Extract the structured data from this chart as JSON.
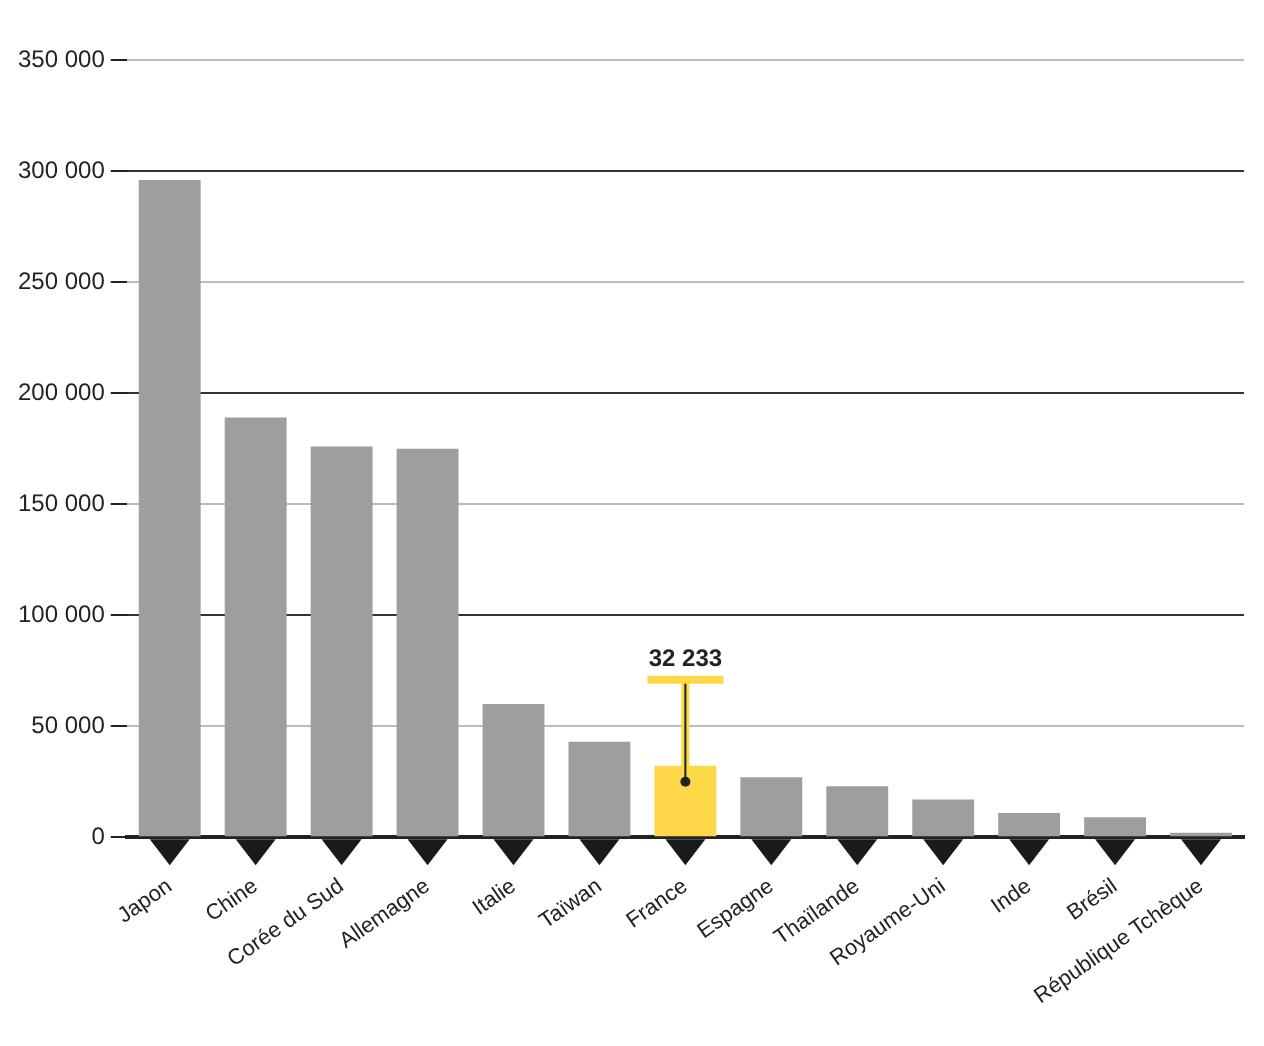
{
  "chart_data": {
    "type": "bar",
    "categories": [
      "Japon",
      "Chine",
      "Corée du Sud",
      "Allemagne",
      "Italie",
      "Taïwan",
      "France",
      "Espagne",
      "Thaïlande",
      "Royaume-Uni",
      "Inde",
      "Brésil",
      "République Tchèque"
    ],
    "values": [
      296000,
      189000,
      176000,
      175000,
      60000,
      43000,
      32233,
      27000,
      23000,
      17000,
      11000,
      9000,
      2000
    ],
    "colors": [
      "#9e9e9e",
      "#9e9e9e",
      "#9e9e9e",
      "#9e9e9e",
      "#9e9e9e",
      "#9e9e9e",
      "#ffd84a",
      "#9e9e9e",
      "#9e9e9e",
      "#9e9e9e",
      "#9e9e9e",
      "#9e9e9e",
      "#9e9e9e"
    ],
    "value_labels": [
      null,
      null,
      null,
      null,
      null,
      null,
      "32 233",
      null,
      null,
      null,
      null,
      null,
      null
    ],
    "ylim": [
      0,
      350000
    ],
    "yticks": [
      {
        "value": 0,
        "label": "0"
      },
      {
        "value": 50000,
        "label": "50 000"
      },
      {
        "value": 100000,
        "label": "100 000"
      },
      {
        "value": 150000,
        "label": "150 000"
      },
      {
        "value": 200000,
        "label": "200 000"
      },
      {
        "value": 250000,
        "label": "250 000"
      },
      {
        "value": 300000,
        "label": "300 000"
      },
      {
        "value": 350000,
        "label": "350 000"
      }
    ],
    "grid": "y",
    "legend": false
  }
}
